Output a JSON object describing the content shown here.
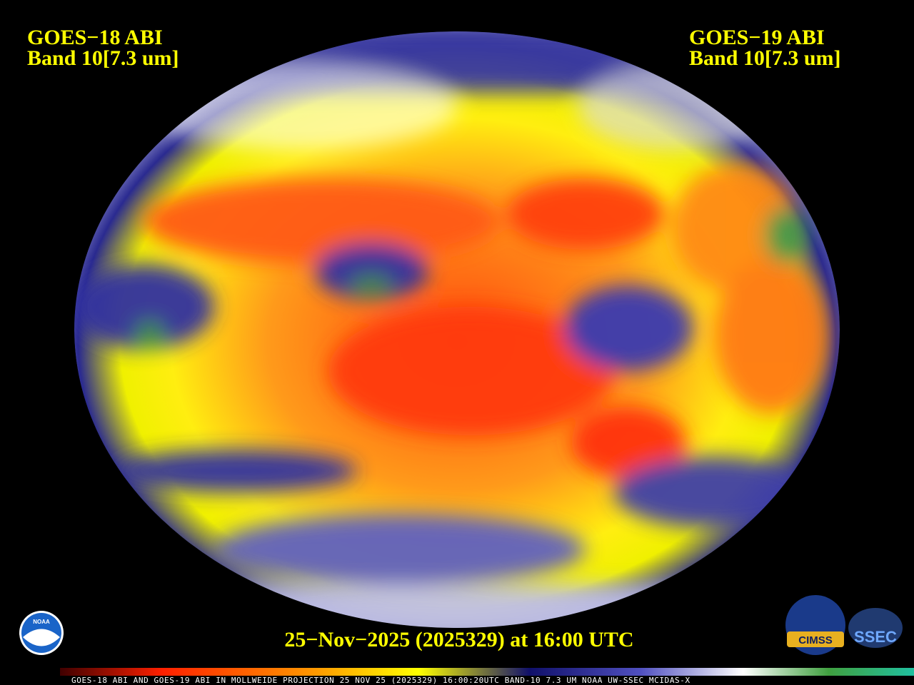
{
  "header": {
    "left": {
      "satellite": "GOES−18 ABI",
      "band": "Band 10[7.3 um]"
    },
    "right": {
      "satellite": "GOES−19 ABI",
      "band": "Band 10[7.3 um]"
    }
  },
  "timestamp": "25−Nov−2025 (2025329) at 16:00 UTC",
  "footer": "GOES-18 ABI AND GOES-19 ABI IN MOLLWEIDE PROJECTION 25 NOV 25 (2025329) 16:00:20UTC BAND-10 7.3 UM NOAA UW-SSEC MCIDAS-X",
  "logos": {
    "noaa": "NOAA",
    "cimss": "CIMSS",
    "ssec": "SSEC"
  }
}
